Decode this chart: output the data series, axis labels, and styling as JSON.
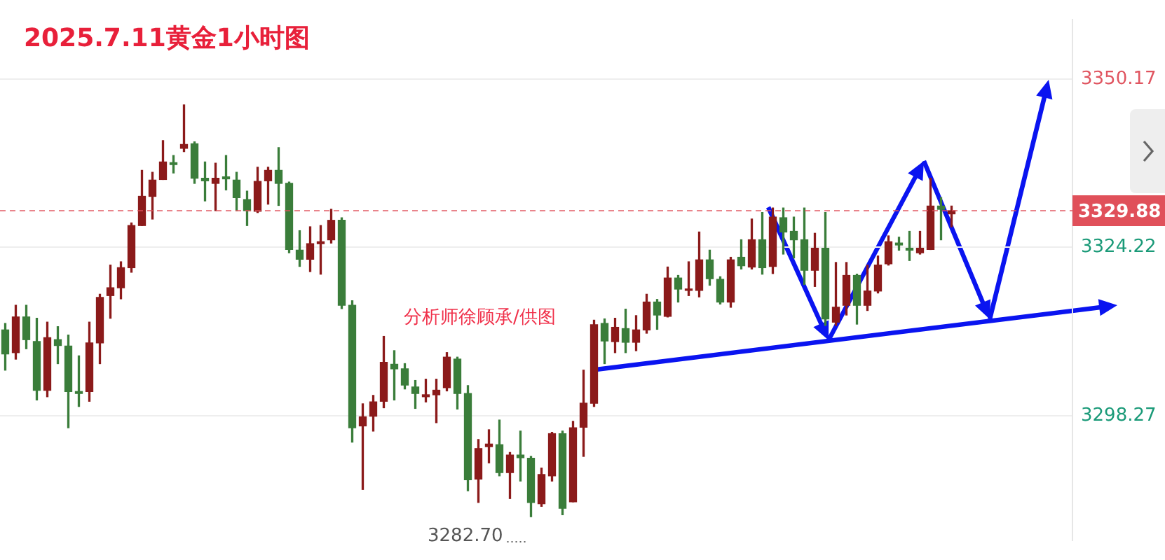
{
  "chart_data": {
    "type": "candlestick",
    "title": "2025.7.11黄金1小时图",
    "annotations": [
      "3282.70",
      "分析师徐顾承/供图"
    ],
    "categories": [
      null,
      null,
      null,
      null,
      null,
      null,
      null,
      null,
      null,
      null,
      null,
      null,
      null,
      null,
      null,
      null,
      null,
      null,
      null,
      null,
      null,
      null,
      null,
      null,
      null,
      null,
      null,
      null,
      null,
      null,
      null,
      null,
      null,
      null,
      null,
      null,
      null,
      null,
      null,
      null,
      null,
      null,
      null,
      null,
      null,
      null,
      null,
      null,
      null,
      null,
      null,
      null,
      null,
      null,
      null,
      null,
      null,
      null,
      null,
      null,
      null,
      null,
      null,
      null,
      null,
      null,
      null,
      null,
      null,
      null,
      null,
      null,
      null,
      null,
      null,
      null,
      null,
      null,
      null,
      null,
      null,
      null,
      null,
      null,
      null,
      null,
      null,
      null,
      null,
      null,
      null,
      null,
      null,
      null,
      null,
      null,
      null,
      null,
      null,
      null,
      null,
      null
    ],
    "ohlc": [
      [
        3311.5,
        3312.5,
        3305.3,
        3307.8
      ],
      [
        3308.0,
        3315.3,
        3307.0,
        3313.5
      ],
      [
        3313.5,
        3315.3,
        3308.6,
        3310.0
      ],
      [
        3309.7,
        3313.3,
        3300.7,
        3302.2
      ],
      [
        3302.2,
        3312.7,
        3301.2,
        3310.3
      ],
      [
        3310.0,
        3312.0,
        3306.3,
        3309.1
      ],
      [
        3309.0,
        3310.7,
        3296.4,
        3302.0
      ],
      [
        3302.0,
        3307.5,
        3299.7,
        3301.7
      ],
      [
        3302.0,
        3312.7,
        3300.5,
        3309.5
      ],
      [
        3309.5,
        3317.0,
        3306.3,
        3316.5
      ],
      [
        3316.8,
        3321.5,
        3313.3,
        3318.0
      ],
      [
        3318.0,
        3322.0,
        3316.3,
        3321.1
      ],
      [
        3321.1,
        3328.0,
        3320.4,
        3327.6
      ],
      [
        3327.6,
        3336.1,
        3327.6,
        3332.1
      ],
      [
        3332.1,
        3335.8,
        3328.6,
        3334.6
      ],
      [
        3334.7,
        3340.7,
        3334.7,
        3337.4
      ],
      [
        3337.3,
        3338.4,
        3335.7,
        3337.0
      ],
      [
        3339.5,
        3346.2,
        3339.0,
        3340.1
      ],
      [
        3340.2,
        3340.5,
        3334.1,
        3334.9
      ],
      [
        3334.9,
        3337.4,
        3331.4,
        3334.5
      ],
      [
        3334.1,
        3337.2,
        3329.9,
        3334.9
      ],
      [
        3335.1,
        3338.4,
        3333.1,
        3334.8
      ],
      [
        3334.6,
        3335.8,
        3329.9,
        3331.9
      ],
      [
        3331.6,
        3332.9,
        3327.6,
        3329.9
      ],
      [
        3329.8,
        3336.6,
        3329.6,
        3334.4
      ],
      [
        3334.5,
        3336.6,
        3330.9,
        3336.1
      ],
      [
        3336.1,
        3339.6,
        3330.7,
        3334.1
      ],
      [
        3334.1,
        3334.3,
        3323.4,
        3323.9
      ],
      [
        3323.8,
        3326.8,
        3321.3,
        3322.4
      ],
      [
        3322.4,
        3327.4,
        3320.5,
        3324.8
      ],
      [
        3324.8,
        3327.6,
        3320.1,
        3325.1
      ],
      [
        3325.4,
        3330.1,
        3324.9,
        3328.4
      ],
      [
        3328.4,
        3328.8,
        3314.8,
        3315.3
      ],
      [
        3315.3,
        3316.0,
        3294.2,
        3296.4
      ],
      [
        3296.7,
        3300.1,
        3286.9,
        3298.1
      ],
      [
        3298.2,
        3301.4,
        3295.9,
        3300.4
      ],
      [
        3300.5,
        3310.5,
        3299.5,
        3306.5
      ],
      [
        3306.2,
        3308.3,
        3300.7,
        3305.5
      ],
      [
        3305.5,
        3306.3,
        3302.4,
        3303.0
      ],
      [
        3302.7,
        3303.7,
        3299.4,
        3301.7
      ],
      [
        3301.2,
        3303.9,
        3300.4,
        3301.5
      ],
      [
        3301.5,
        3303.9,
        3297.2,
        3302.2
      ],
      [
        3302.6,
        3308.0,
        3302.1,
        3307.3
      ],
      [
        3307.0,
        3307.3,
        3299.3,
        3301.7
      ],
      [
        3301.7,
        3302.9,
        3286.7,
        3288.4
      ],
      [
        3288.5,
        3294.6,
        3284.9,
        3293.2
      ],
      [
        3293.5,
        3296.1,
        3291.0,
        3293.9
      ],
      [
        3293.8,
        3297.6,
        3289.0,
        3289.5
      ],
      [
        3289.5,
        3292.6,
        3285.5,
        3292.2
      ],
      [
        3292.2,
        3295.9,
        3288.2,
        3291.8
      ],
      [
        3291.7,
        3292.0,
        3282.7,
        3284.9
      ],
      [
        3284.7,
        3290.2,
        3284.3,
        3289.2
      ],
      [
        3289.0,
        3295.7,
        3288.2,
        3295.5
      ],
      [
        3295.5,
        3295.9,
        3283.0,
        3284.0
      ],
      [
        3285.0,
        3297.4,
        3285.0,
        3296.4
      ],
      [
        3296.5,
        3305.3,
        3292.0,
        3300.2
      ],
      [
        3300.2,
        3313.0,
        3299.7,
        3312.3
      ],
      [
        3312.5,
        3313.2,
        3306.3,
        3309.8
      ],
      [
        3309.7,
        3313.3,
        3308.0,
        3311.9
      ],
      [
        3311.7,
        3314.7,
        3308.0,
        3309.6
      ],
      [
        3309.6,
        3313.7,
        3308.3,
        3311.5
      ],
      [
        3311.5,
        3317.0,
        3311.0,
        3315.8
      ],
      [
        3315.8,
        3316.2,
        3311.6,
        3313.8
      ],
      [
        3313.6,
        3321.2,
        3313.5,
        3319.5
      ],
      [
        3319.5,
        3319.9,
        3315.8,
        3317.8
      ],
      [
        3317.6,
        3322.0,
        3316.8,
        3317.8
      ],
      [
        3317.6,
        3326.6,
        3316.6,
        3322.3
      ],
      [
        3322.3,
        3323.8,
        3318.4,
        3319.4
      ],
      [
        3319.3,
        3319.7,
        3315.5,
        3315.8
      ],
      [
        3315.8,
        3322.7,
        3315.0,
        3322.3
      ],
      [
        3322.7,
        3325.4,
        3320.9,
        3321.4
      ],
      [
        3321.2,
        3328.6,
        3320.9,
        3325.4
      ],
      [
        3325.4,
        3329.6,
        3320.1,
        3321.1
      ],
      [
        3321.3,
        3330.3,
        3320.2,
        3328.9
      ],
      [
        3328.8,
        3330.3,
        3323.2,
        3326.6
      ],
      [
        3326.7,
        3328.9,
        3322.6,
        3325.4
      ],
      [
        3325.4,
        3330.3,
        3318.5,
        3320.7
      ],
      [
        3320.7,
        3326.4,
        3318.2,
        3324.1
      ],
      [
        3324.1,
        3329.6,
        3312.2,
        3313.2
      ],
      [
        3312.7,
        3321.9,
        3312.2,
        3315.0
      ],
      [
        3315.3,
        3321.9,
        3313.8,
        3319.9
      ],
      [
        3319.9,
        3320.1,
        3312.4,
        3315.3
      ],
      [
        3315.3,
        3321.5,
        3314.5,
        3317.5
      ],
      [
        3317.5,
        3322.9,
        3317.2,
        3321.5
      ],
      [
        3321.7,
        3326.0,
        3321.5,
        3325.1
      ],
      [
        3324.9,
        3325.8,
        3323.8,
        3324.6
      ],
      [
        3324.1,
        3326.7,
        3322.2,
        3323.8
      ],
      [
        3323.4,
        3326.7,
        3323.2,
        3324.1
      ],
      [
        3323.9,
        3334.9,
        3323.9,
        3330.6
      ],
      [
        3330.6,
        3331.9,
        3325.4,
        3330.1
      ],
      [
        3329.4,
        3330.6,
        3327.4,
        3329.88
      ],
      null,
      null,
      null,
      null,
      null,
      null,
      null,
      null,
      null,
      null,
      null
    ],
    "colors": [
      "#3a7d3a",
      "#8b1a1a",
      "#3a7d3a",
      "#3a7d3a",
      "#8b1a1a",
      "#3a7d3a",
      "#3a7d3a",
      "#3a7d3a",
      "#8b1a1a",
      "#8b1a1a",
      "#8b1a1a",
      "#8b1a1a",
      "#8b1a1a",
      "#8b1a1a",
      "#8b1a1a",
      "#8b1a1a",
      "#3a7d3a",
      "#8b1a1a",
      "#3a7d3a",
      "#3a7d3a",
      "#8b1a1a",
      "#3a7d3a",
      "#3a7d3a",
      "#3a7d3a",
      "#8b1a1a",
      "#8b1a1a",
      "#3a7d3a",
      "#3a7d3a",
      "#3a7d3a",
      "#8b1a1a",
      "#8b1a1a",
      "#8b1a1a",
      "#3a7d3a",
      "#3a7d3a",
      "#8b1a1a",
      "#8b1a1a",
      "#8b1a1a",
      "#3a7d3a",
      "#3a7d3a",
      "#3a7d3a",
      "#8b1a1a",
      "#8b1a1a",
      "#8b1a1a",
      "#3a7d3a",
      "#3a7d3a",
      "#8b1a1a",
      "#8b1a1a",
      "#3a7d3a",
      "#8b1a1a",
      "#3a7d3a",
      "#3a7d3a",
      "#8b1a1a",
      "#8b1a1a",
      "#3a7d3a",
      "#8b1a1a",
      "#8b1a1a",
      "#8b1a1a",
      "#3a7d3a",
      "#8b1a1a",
      "#3a7d3a",
      "#8b1a1a",
      "#8b1a1a",
      "#3a7d3a",
      "#8b1a1a",
      "#3a7d3a",
      "#8b1a1a",
      "#8b1a1a",
      "#3a7d3a",
      "#3a7d3a",
      "#8b1a1a",
      "#3a7d3a",
      "#8b1a1a",
      "#3a7d3a",
      "#8b1a1a",
      "#3a7d3a",
      "#3a7d3a",
      "#3a7d3a",
      "#8b1a1a",
      "#3a7d3a",
      "#8b1a1a",
      "#8b1a1a",
      "#3a7d3a",
      "#8b1a1a",
      "#8b1a1a",
      "#8b1a1a",
      "#3a7d3a",
      "#3a7d3a",
      "#8b1a1a",
      "#8b1a1a",
      "#3a7d3a",
      "#8b1a1a",
      null,
      null,
      null,
      null,
      null,
      null,
      null,
      null,
      null,
      null,
      null
    ],
    "ylim": [
      3279.0,
      3359.4
    ],
    "yticks": [
      3298.27,
      3324.22,
      3350.17
    ],
    "grid": "y",
    "tick_labels": "y",
    "ref_lines": [
      {
        "axis": "y",
        "value": 3329.88,
        "label": "3329.88",
        "color": "#e0505a",
        "line_style": "dashed"
      }
    ]
  }
}
